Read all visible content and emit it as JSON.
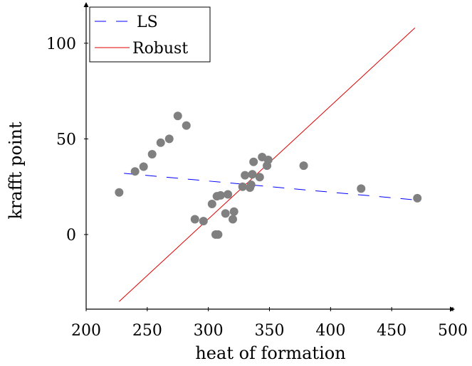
{
  "chart_data": {
    "type": "scatter",
    "title": "",
    "xlabel": "heat of formation",
    "ylabel": "krafft point",
    "xlim": [
      200,
      500
    ],
    "ylim": [
      -39,
      120
    ],
    "xticks": [
      200,
      250,
      300,
      350,
      400,
      450,
      500
    ],
    "yticks": [
      0,
      50,
      100
    ],
    "grid": false,
    "legend_position": "top-left",
    "points": [
      {
        "x": 227,
        "y": 22
      },
      {
        "x": 240,
        "y": 33
      },
      {
        "x": 247,
        "y": 35.5
      },
      {
        "x": 254,
        "y": 42
      },
      {
        "x": 261,
        "y": 48
      },
      {
        "x": 268,
        "y": 50
      },
      {
        "x": 275,
        "y": 62
      },
      {
        "x": 282,
        "y": 57
      },
      {
        "x": 289,
        "y": 8
      },
      {
        "x": 296,
        "y": 7
      },
      {
        "x": 303,
        "y": 16
      },
      {
        "x": 306,
        "y": 0
      },
      {
        "x": 307,
        "y": 20
      },
      {
        "x": 308,
        "y": 0
      },
      {
        "x": 310,
        "y": 20.5
      },
      {
        "x": 314,
        "y": 11
      },
      {
        "x": 316,
        "y": 21
      },
      {
        "x": 320,
        "y": 8
      },
      {
        "x": 321,
        "y": 12
      },
      {
        "x": 328,
        "y": 25
      },
      {
        "x": 330,
        "y": 31
      },
      {
        "x": 334,
        "y": 24.5
      },
      {
        "x": 335,
        "y": 26
      },
      {
        "x": 336,
        "y": 31.5
      },
      {
        "x": 337,
        "y": 38
      },
      {
        "x": 342,
        "y": 30
      },
      {
        "x": 344,
        "y": 40.5
      },
      {
        "x": 348,
        "y": 36
      },
      {
        "x": 349,
        "y": 39
      },
      {
        "x": 378,
        "y": 36
      },
      {
        "x": 425,
        "y": 24
      },
      {
        "x": 471,
        "y": 19
      }
    ],
    "point_color": "#808080",
    "series": [
      {
        "name": "LS",
        "color": "#0000ff",
        "style": "dashed",
        "x": [
          231,
          471
        ],
        "y": [
          32,
          18
        ]
      },
      {
        "name": "Robust",
        "color": "#e00000",
        "style": "solid",
        "x": [
          227,
          469
        ],
        "y": [
          -35,
          108
        ]
      }
    ]
  }
}
